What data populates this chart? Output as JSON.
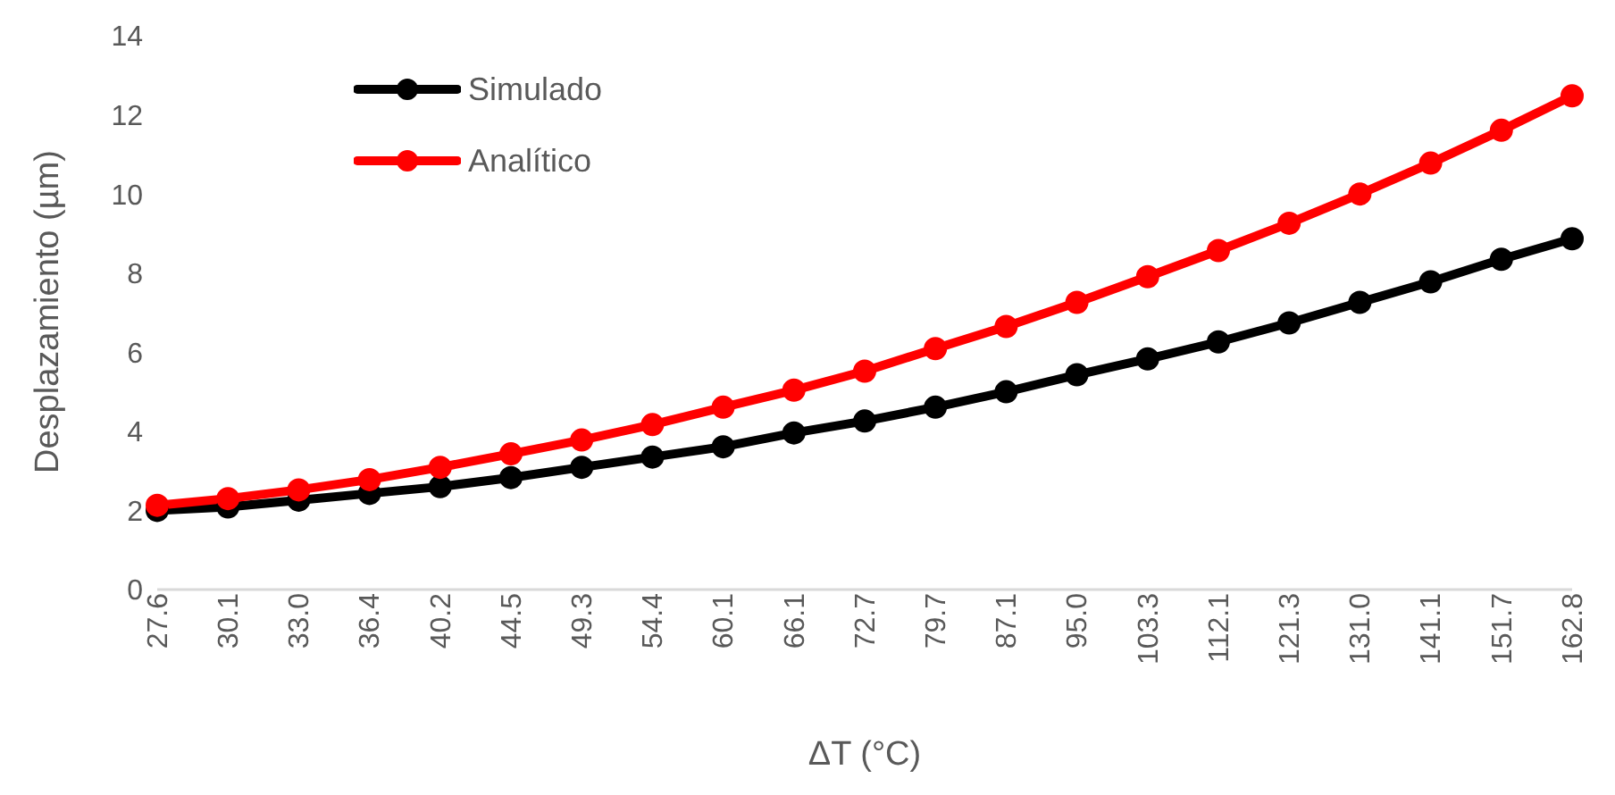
{
  "chart_data": {
    "type": "line",
    "xlabel": "ΔT (°C)",
    "ylabel": "Desplazamiento (µm)",
    "categories": [
      "27.6",
      "30.1",
      "33.0",
      "36.4",
      "40.2",
      "44.5",
      "49.3",
      "54.4",
      "60.1",
      "66.1",
      "72.7",
      "79.7",
      "87.1",
      "95.0",
      "103.3",
      "112.1",
      "121.3",
      "131.0",
      "141.1",
      "151.7",
      "162.8"
    ],
    "series": [
      {
        "name": "Simulado",
        "color": "#000000",
        "values": [
          2.0,
          2.09,
          2.26,
          2.43,
          2.6,
          2.83,
          3.09,
          3.35,
          3.61,
          3.96,
          4.26,
          4.61,
          5.0,
          5.43,
          5.83,
          6.26,
          6.74,
          7.26,
          7.78,
          8.35,
          8.87
        ]
      },
      {
        "name": "Analítico",
        "color": "#ff0000",
        "values": [
          2.13,
          2.3,
          2.52,
          2.78,
          3.09,
          3.43,
          3.78,
          4.17,
          4.61,
          5.04,
          5.52,
          6.09,
          6.65,
          7.26,
          7.91,
          8.57,
          9.26,
          10.0,
          10.78,
          11.61,
          12.48
        ]
      }
    ],
    "ylim": [
      0,
      14
    ],
    "yticks": [
      0,
      2,
      4,
      6,
      8,
      10,
      12,
      14
    ],
    "grid": false,
    "legend": "top left",
    "marker": "circle",
    "line_style": "solid"
  }
}
